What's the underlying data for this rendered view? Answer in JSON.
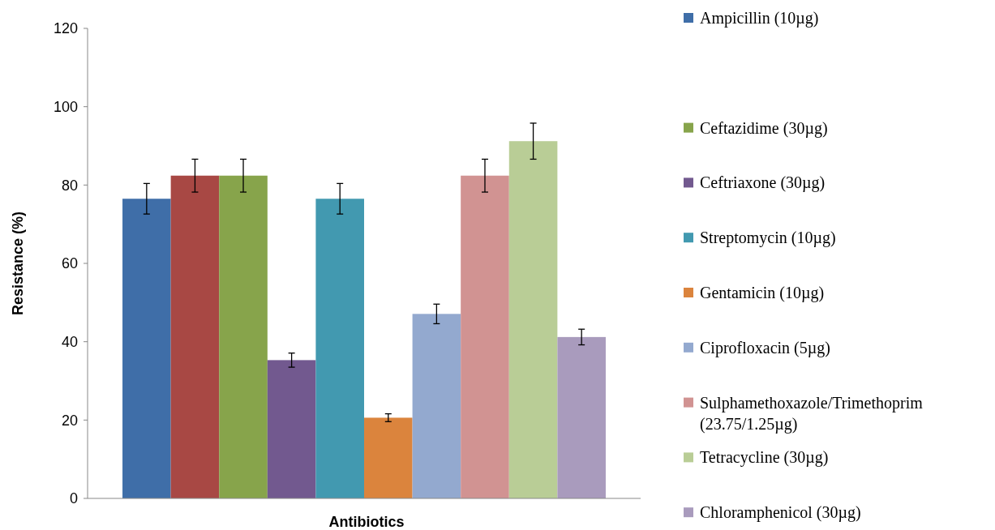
{
  "chart_data": {
    "type": "bar",
    "xlabel": "Antibiotics",
    "ylabel": "Resistance (%)",
    "categories": [
      null
    ],
    "ylim": [
      0,
      120
    ],
    "yticks": [
      0,
      20,
      40,
      60,
      80,
      100,
      120
    ],
    "grid": false,
    "legend": "right",
    "series": [
      {
        "name": "Ampicillin (10µg)",
        "color": "#3f6ea8",
        "values": [
          76.5
        ],
        "errors": [
          3.9
        ]
      },
      {
        "color": "#a84844",
        "values": [
          82.4
        ],
        "errors": [
          4.2
        ]
      },
      {
        "name": "Ceftazidime (30µg)",
        "color": "#87a44b",
        "values": [
          82.4
        ],
        "errors": [
          4.2
        ]
      },
      {
        "name": "Ceftriaxone (30µg)",
        "color": "#72598f",
        "values": [
          35.3
        ],
        "errors": [
          1.8
        ]
      },
      {
        "name": "Streptomycin (10µg)",
        "color": "#4299b0",
        "values": [
          76.5
        ],
        "errors": [
          3.9
        ]
      },
      {
        "name": "Gentamicin (10µg)",
        "color": "#db843d",
        "values": [
          20.6
        ],
        "errors": [
          1
        ]
      },
      {
        "name": "Ciprofloxacin (5µg)",
        "color": "#93a9cf",
        "values": [
          47.1
        ],
        "errors": [
          2.5
        ]
      },
      {
        "name": "Sulphamethoxazole/Trimethoprim (23.75/1.25µg)",
        "color": "#d19392",
        "values": [
          82.4
        ],
        "errors": [
          4.2
        ]
      },
      {
        "name": "Tetracycline (30µg)",
        "color": "#b9cd96",
        "values": [
          91.2
        ],
        "errors": [
          4.6
        ]
      },
      {
        "name": "Chloramphenicol (30µg)",
        "color": "#a99bbd",
        "values": [
          41.2
        ],
        "errors": [
          2
        ]
      }
    ]
  }
}
